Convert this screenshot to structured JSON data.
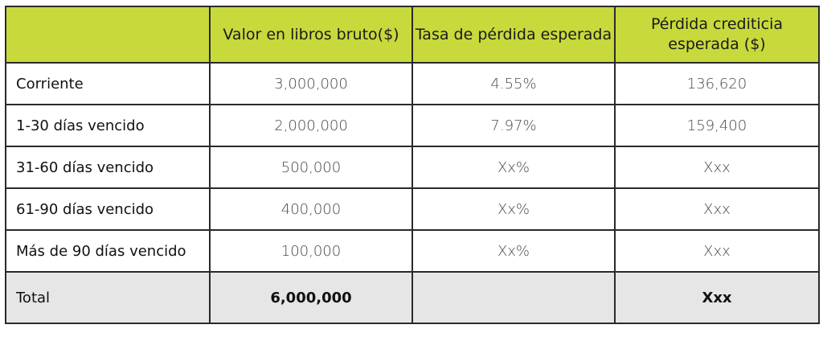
{
  "table": {
    "headers": [
      "",
      "Valor en libros bruto($)",
      "Tasa de pérdida esperada",
      "Pérdida crediticia esperada ($)"
    ],
    "rows": [
      {
        "label": "Corriente",
        "valor": "3,000,000",
        "tasa": "4.55%",
        "perdida": "136,620"
      },
      {
        "label": "1-30 días vencido",
        "valor": "2,000,000",
        "tasa": "7.97%",
        "perdida": "159,400"
      },
      {
        "label": "31-60 días vencido",
        "valor": "500,000",
        "tasa": "Xx%",
        "perdida": "Xxx"
      },
      {
        "label": "61-90 días vencido",
        "valor": "400,000",
        "tasa": "Xx%",
        "perdida": "Xxx"
      },
      {
        "label": "Más de 90 días vencido",
        "valor": "100,000",
        "tasa": "Xx%",
        "perdida": "Xxx"
      }
    ],
    "total": {
      "label": "Total",
      "valor": "6,000,000",
      "tasa": "",
      "perdida": "Xxx"
    }
  },
  "colors": {
    "header_bg": "#c8d93b",
    "total_bg": "#e6e6e6",
    "border": "#2a2a2a"
  }
}
